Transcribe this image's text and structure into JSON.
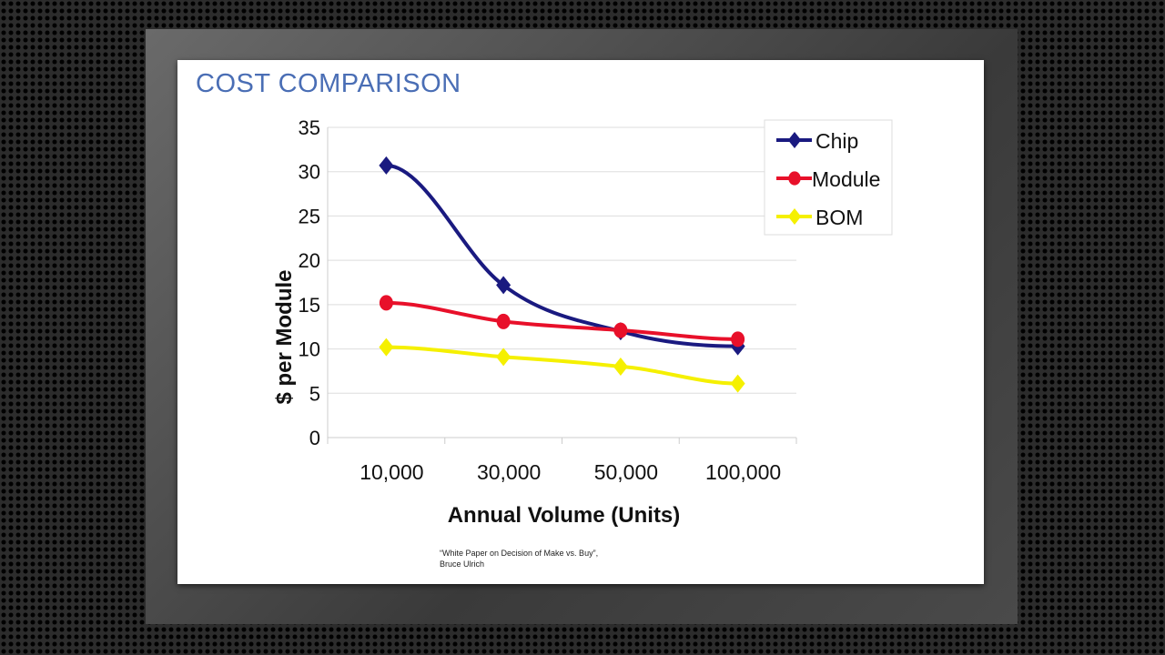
{
  "slide": {
    "title": "COST COMPARISON",
    "citation_line1": "“White Paper on Decision of Make vs. Buy”,",
    "citation_line2": "Bruce Ulrich"
  },
  "chart_data": {
    "type": "line",
    "title": "",
    "xlabel": "Annual Volume (Units)",
    "ylabel": "$ per Module",
    "categories": [
      "10,000",
      "30,000",
      "50,000",
      "100,000"
    ],
    "ylim": [
      0,
      35
    ],
    "yticks": [
      0,
      5,
      10,
      15,
      20,
      25,
      30,
      35
    ],
    "grid": true,
    "legend": "top-right",
    "series": [
      {
        "name": "Chip",
        "values": [
          30.7,
          17.2,
          12.0,
          10.3
        ],
        "color": "#1a1a80",
        "marker": "diamond"
      },
      {
        "name": "Module",
        "values": [
          15.2,
          13.1,
          12.1,
          11.1
        ],
        "color": "#e8102a",
        "marker": "circle"
      },
      {
        "name": "BOM",
        "values": [
          10.2,
          9.1,
          8.0,
          6.1
        ],
        "color": "#f5f000",
        "marker": "diamond"
      }
    ]
  }
}
